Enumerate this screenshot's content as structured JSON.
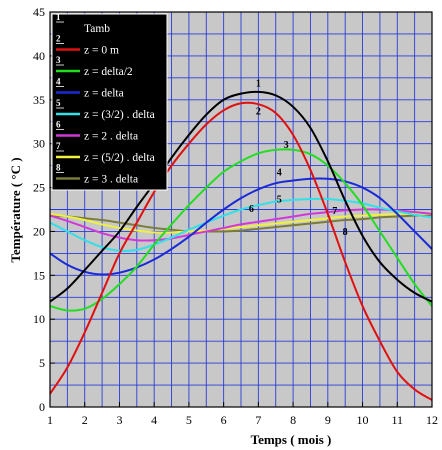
{
  "chart_data": {
    "type": "line",
    "title": "",
    "xlabel": "Temps ( mois )",
    "ylabel": "Température ( °C )",
    "xlim": [
      1,
      12
    ],
    "ylim": [
      0,
      45
    ],
    "xticks": [
      "1",
      "2",
      "3",
      "4",
      "5",
      "6",
      "7",
      "8",
      "9",
      "10",
      "11",
      "12"
    ],
    "yticks": [
      "0",
      "5",
      "10",
      "15",
      "20",
      "25",
      "30",
      "35",
      "40",
      "45"
    ],
    "grid": true,
    "legend_position": "top-left",
    "x": [
      1,
      1.5,
      2,
      2.5,
      3,
      3.5,
      4,
      4.5,
      5,
      5.5,
      6,
      6.5,
      7,
      7.5,
      8,
      8.5,
      9,
      9.5,
      10,
      10.5,
      11,
      11.5,
      12
    ],
    "series": [
      {
        "id": "1",
        "name": "Tamb",
        "color": "#000000",
        "values": [
          12.0,
          13.5,
          15.6,
          17.8,
          20.0,
          22.8,
          25.5,
          28.4,
          31.0,
          33.3,
          35.0,
          35.7,
          35.9,
          35.5,
          34.2,
          31.8,
          28.0,
          23.5,
          19.5,
          16.5,
          14.5,
          13.0,
          12.0
        ],
        "label_at": [
          7.0,
          36.5
        ]
      },
      {
        "id": "2",
        "name": "z = 0 m",
        "color": "#e01010",
        "values": [
          1.5,
          4.5,
          8.5,
          13.0,
          17.5,
          21.0,
          24.5,
          27.5,
          30.0,
          32.2,
          33.8,
          34.6,
          34.5,
          33.5,
          31.0,
          27.0,
          22.0,
          16.5,
          11.5,
          7.5,
          4.0,
          2.0,
          0.8
        ],
        "label_at": [
          7.0,
          33.3
        ]
      },
      {
        "id": "3",
        "name": "z = delta/2",
        "color": "#22dd22",
        "values": [
          11.5,
          11.0,
          11.2,
          12.3,
          14.0,
          16.0,
          18.5,
          20.8,
          23.0,
          25.0,
          26.8,
          28.0,
          28.9,
          29.3,
          29.3,
          28.8,
          27.5,
          25.5,
          23.0,
          20.0,
          17.0,
          14.0,
          11.5
        ],
        "label_at": [
          7.8,
          29.5
        ]
      },
      {
        "id": "4",
        "name": "z = delta",
        "color": "#1a2ad6",
        "values": [
          17.5,
          16.2,
          15.4,
          15.1,
          15.3,
          15.9,
          16.8,
          18.0,
          19.4,
          21.0,
          22.5,
          23.8,
          24.8,
          25.5,
          25.8,
          26.0,
          26.0,
          25.7,
          25.0,
          23.8,
          22.0,
          20.0,
          18.0
        ],
        "label_at": [
          7.6,
          26.4
        ]
      },
      {
        "id": "5",
        "name": "z = (3/2) . delta",
        "color": "#33e0e8",
        "values": [
          21.0,
          20.0,
          19.0,
          18.2,
          17.8,
          17.9,
          18.5,
          19.3,
          20.2,
          21.0,
          21.8,
          22.5,
          23.0,
          23.4,
          23.6,
          23.7,
          23.7,
          23.5,
          23.2,
          22.7,
          22.3,
          21.9,
          21.6
        ],
        "label_at": [
          7.6,
          23.3
        ]
      },
      {
        "id": "6",
        "name": "z = 2 . delta",
        "color": "#d238d9",
        "values": [
          21.8,
          21.2,
          20.5,
          19.8,
          19.3,
          19.0,
          19.0,
          19.2,
          19.6,
          20.0,
          20.4,
          20.8,
          21.1,
          21.4,
          21.7,
          22.0,
          22.2,
          22.4,
          22.5,
          22.5,
          22.4,
          22.2,
          22.0
        ],
        "label_at": [
          6.8,
          22.2
        ]
      },
      {
        "id": "7",
        "name": "z = (5/2) . delta",
        "color": "#f0f040",
        "values": [
          22.0,
          21.7,
          21.3,
          20.8,
          20.4,
          20.1,
          19.9,
          19.9,
          20.0,
          20.1,
          20.3,
          20.5,
          20.7,
          20.9,
          21.1,
          21.3,
          21.5,
          21.7,
          21.8,
          21.9,
          22.0,
          22.0,
          22.0
        ],
        "label_at": [
          9.2,
          22.0
        ]
      },
      {
        "id": "8",
        "name": "z = 3 . delta",
        "color": "#7a7b38",
        "values": [
          21.8,
          21.7,
          21.5,
          21.3,
          21.0,
          20.7,
          20.4,
          20.2,
          20.0,
          20.0,
          20.0,
          20.1,
          20.3,
          20.5,
          20.7,
          20.9,
          21.1,
          21.3,
          21.4,
          21.6,
          21.7,
          21.8,
          21.9
        ],
        "label_at": [
          9.5,
          19.6
        ]
      }
    ]
  }
}
